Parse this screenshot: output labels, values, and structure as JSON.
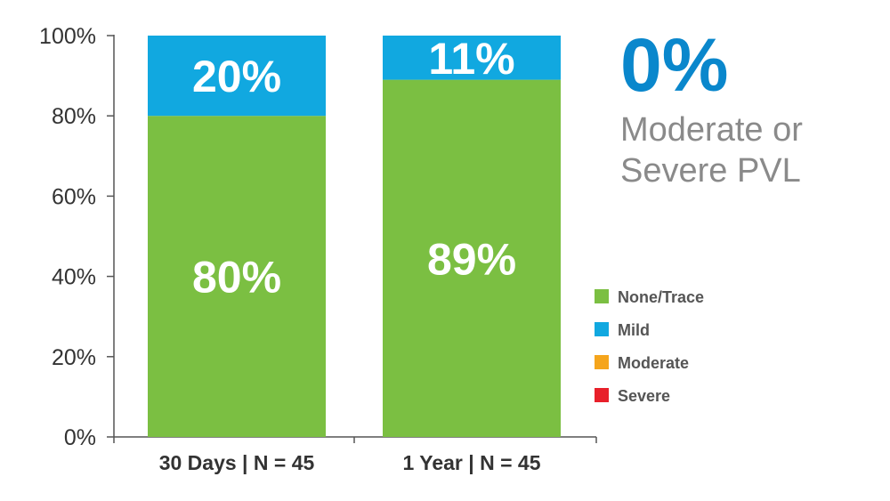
{
  "chart_data": {
    "type": "bar",
    "stacked": true,
    "categories": [
      "30 Days | N = 45",
      "1 Year | N = 45"
    ],
    "series": [
      {
        "name": "None/Trace",
        "color": "#7bbf42",
        "values": [
          80,
          89
        ],
        "labels": [
          "80%",
          "89%"
        ]
      },
      {
        "name": "Mild",
        "color": "#11a8e0",
        "values": [
          20,
          11
        ],
        "labels": [
          "20%",
          "11%"
        ]
      },
      {
        "name": "Moderate",
        "color": "#f5a51c",
        "values": [
          0,
          0
        ],
        "labels": [
          "",
          ""
        ]
      },
      {
        "name": "Severe",
        "color": "#e8202a",
        "values": [
          0,
          0
        ],
        "labels": [
          "",
          ""
        ]
      }
    ],
    "yticks": [
      "0%",
      "20%",
      "40%",
      "60%",
      "80%",
      "100%"
    ],
    "ylim": [
      0,
      100
    ],
    "legend_position": "right",
    "grid": false
  },
  "callout": {
    "value": "0%",
    "text": "Moderate or Severe PVL"
  }
}
